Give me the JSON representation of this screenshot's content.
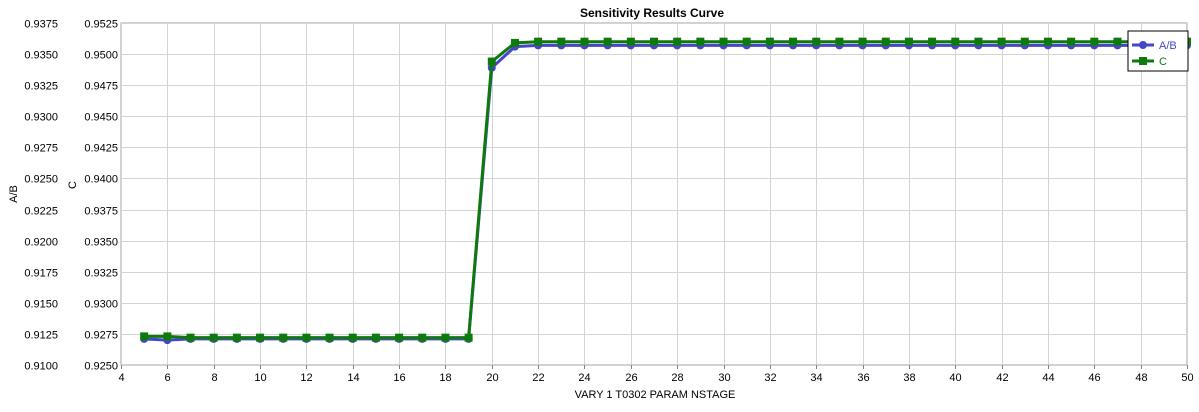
{
  "chart_data": {
    "type": "line",
    "title": "Sensitivity Results Curve",
    "xlabel": "VARY   1 T0302 PARAM NSTAGE",
    "ylabel_left": "A/B",
    "ylabel_right": "C",
    "xlim": [
      4,
      50
    ],
    "ylim_left": [
      0.91,
      0.9375
    ],
    "ylim_right": [
      0.925,
      0.9525
    ],
    "x_ticks": [
      "4",
      "6",
      "8",
      "10",
      "12",
      "14",
      "16",
      "18",
      "20",
      "22",
      "24",
      "26",
      "28",
      "30",
      "32",
      "34",
      "36",
      "38",
      "40",
      "42",
      "44",
      "46",
      "48",
      "50"
    ],
    "y_ticks_left": [
      "0.9100",
      "0.9125",
      "0.9150",
      "0.9175",
      "0.9200",
      "0.9225",
      "0.9250",
      "0.9275",
      "0.9300",
      "0.9325",
      "0.9350",
      "0.9375"
    ],
    "y_ticks_right": [
      "0.9250",
      "0.9275",
      "0.9300",
      "0.9325",
      "0.9350",
      "0.9375",
      "0.9400",
      "0.9425",
      "0.9450",
      "0.9475",
      "0.9500",
      "0.9525"
    ],
    "grid": true,
    "legend_position": "top-right",
    "x": [
      5,
      6,
      7,
      8,
      9,
      10,
      11,
      12,
      13,
      14,
      15,
      16,
      17,
      18,
      19,
      20,
      21,
      22,
      23,
      24,
      25,
      26,
      27,
      28,
      29,
      30,
      31,
      32,
      33,
      34,
      35,
      36,
      37,
      38,
      39,
      40,
      41,
      42,
      43,
      44,
      45,
      46,
      47,
      48,
      49,
      50
    ],
    "series": [
      {
        "name": "A/B",
        "axis": "left",
        "color": "#4646c8",
        "marker": "circle",
        "values": [
          0.9121,
          0.912,
          0.9121,
          0.9121,
          0.9121,
          0.9121,
          0.9121,
          0.9121,
          0.9121,
          0.9121,
          0.9121,
          0.9121,
          0.9121,
          0.9121,
          0.9121,
          0.9339,
          0.9356,
          0.9357,
          0.9357,
          0.9357,
          0.9357,
          0.9357,
          0.9357,
          0.9357,
          0.9357,
          0.9357,
          0.9357,
          0.9357,
          0.9357,
          0.9357,
          0.9357,
          0.9357,
          0.9357,
          0.9357,
          0.9357,
          0.9357,
          0.9357,
          0.9357,
          0.9357,
          0.9357,
          0.9357,
          0.9357,
          0.9357,
          0.9357,
          0.9357,
          0.9357
        ]
      },
      {
        "name": "C",
        "axis": "right",
        "color": "#0e7a0e",
        "marker": "square",
        "values": [
          0.9273,
          0.9273,
          0.9272,
          0.9272,
          0.9272,
          0.9272,
          0.9272,
          0.9272,
          0.9272,
          0.9272,
          0.9272,
          0.9272,
          0.9272,
          0.9272,
          0.9272,
          0.9494,
          0.9509,
          0.951,
          0.951,
          0.951,
          0.951,
          0.951,
          0.951,
          0.951,
          0.951,
          0.951,
          0.951,
          0.951,
          0.951,
          0.951,
          0.951,
          0.951,
          0.951,
          0.951,
          0.951,
          0.951,
          0.951,
          0.951,
          0.951,
          0.951,
          0.951,
          0.951,
          0.951,
          0.951,
          0.951,
          0.951
        ]
      }
    ]
  }
}
